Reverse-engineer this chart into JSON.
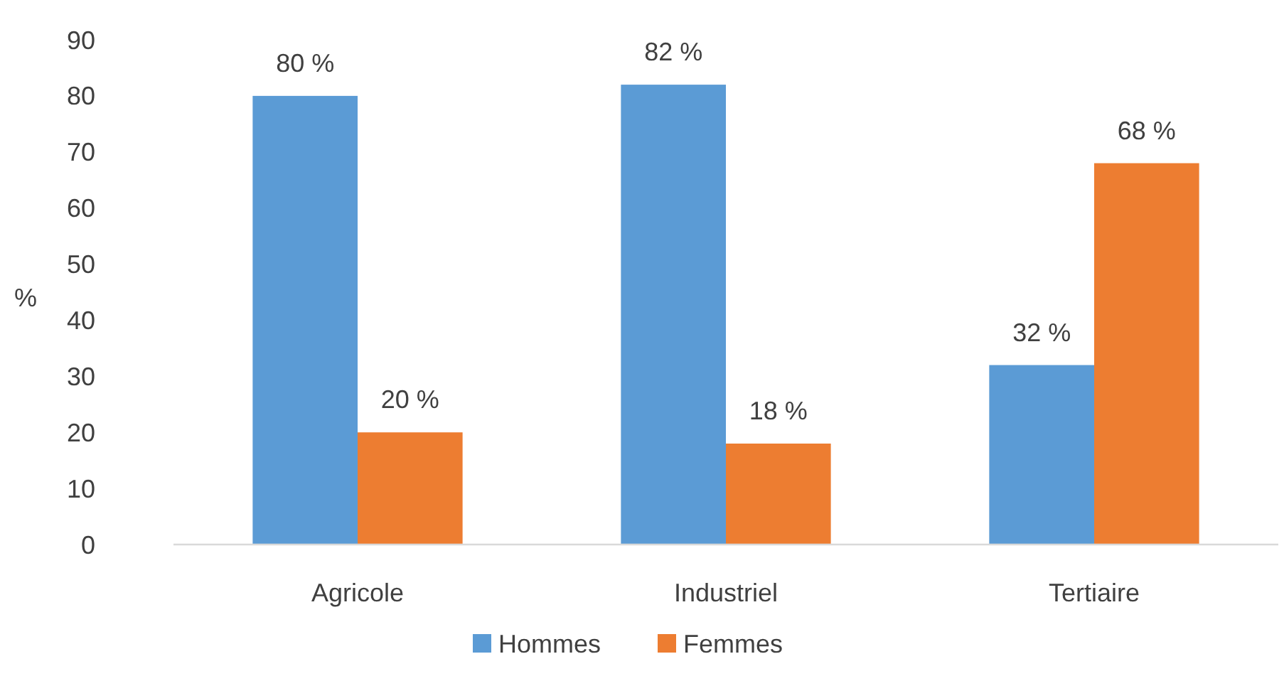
{
  "chart_data": {
    "type": "bar",
    "ylabel": "%",
    "categories": [
      "Agricole",
      "Industriel",
      "Tertiaire"
    ],
    "series": [
      {
        "name": "Hommes",
        "color": "#5b9bd5",
        "values": [
          80,
          82,
          32
        ],
        "value_labels": [
          "80 %",
          "82 %",
          "32 %"
        ]
      },
      {
        "name": "Femmes",
        "color": "#ed7d31",
        "values": [
          20,
          18,
          68
        ],
        "value_labels": [
          "20 %",
          "18 %",
          "68 %"
        ]
      }
    ],
    "ylim": [
      0,
      90
    ],
    "yticks": [
      0,
      10,
      20,
      30,
      40,
      50,
      60,
      70,
      80,
      90
    ],
    "grid": false,
    "legend": "bottom"
  }
}
